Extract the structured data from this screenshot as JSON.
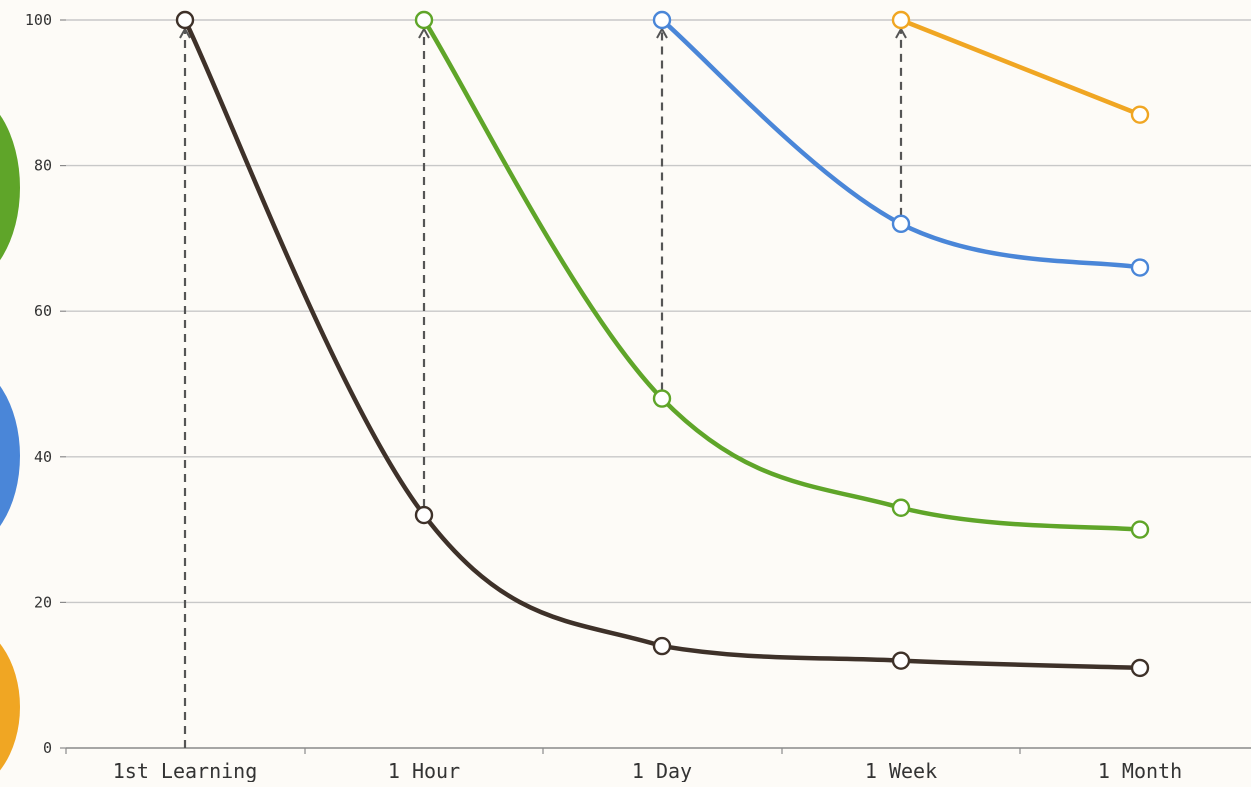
{
  "chart_data": {
    "type": "line",
    "title": "",
    "xlabel": "",
    "ylabel": "",
    "categories": [
      "1st Learning",
      "1 Hour",
      "1 Day",
      "1 Week",
      "1 Month"
    ],
    "ylim": [
      0,
      100
    ],
    "yticks": [
      "0",
      "20",
      "40",
      "60",
      "80",
      "100"
    ],
    "grid": true,
    "legend": "none",
    "series": [
      {
        "color": "#3e3129",
        "points": [
          [
            0,
            100
          ],
          [
            1,
            32
          ],
          [
            2,
            14
          ],
          [
            3,
            12
          ],
          [
            4,
            11
          ]
        ]
      },
      {
        "color": "#5fa529",
        "points": [
          [
            1,
            100
          ],
          [
            2,
            48
          ],
          [
            3,
            33
          ],
          [
            4,
            30
          ]
        ]
      },
      {
        "color": "#4a86d8",
        "points": [
          [
            2,
            100
          ],
          [
            3,
            72
          ],
          [
            4,
            66
          ]
        ]
      },
      {
        "color": "#f0a623",
        "points": [
          [
            3,
            100
          ],
          [
            4,
            87
          ]
        ]
      }
    ],
    "review_arrows": [
      {
        "x": 0,
        "from": 0,
        "to": 100
      },
      {
        "x": 1,
        "from": 32,
        "to": 100
      },
      {
        "x": 2,
        "from": 48,
        "to": 100
      },
      {
        "x": 3,
        "from": 72,
        "to": 100
      }
    ],
    "side_blobs": [
      "#5fa529",
      "#4a86d8",
      "#f0a623"
    ],
    "colors": {
      "background": "#fdfbf7",
      "grid": "#c8c8c8",
      "axis": "#8a8a8a",
      "arrow": "#555555"
    }
  }
}
